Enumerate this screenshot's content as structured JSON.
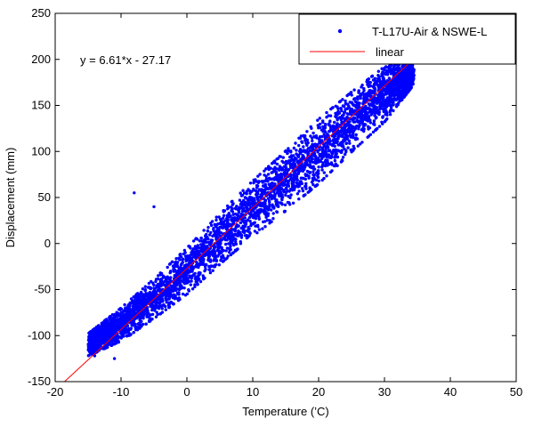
{
  "chart_data": {
    "type": "scatter",
    "title": "",
    "xlabel": "Temperature (’C)",
    "ylabel": "Displacement (mm)",
    "xlim": [
      -20,
      50
    ],
    "ylim": [
      -150,
      250
    ],
    "xticks": [
      -20,
      -10,
      0,
      10,
      20,
      30,
      40,
      50
    ],
    "yticks": [
      -150,
      -100,
      -50,
      0,
      50,
      100,
      150,
      200,
      250
    ],
    "grid": false,
    "legend_position": "top-right",
    "annotation": "y = 6.61*x - 27.17",
    "colors": {
      "scatter": "#0000ff",
      "fit": "#ff0000"
    },
    "series": [
      {
        "name": "T-L17U-Air & NSWE-L",
        "kind": "scatter",
        "band": {
          "x_start": -15,
          "x_end": 34.5,
          "center_line": [
            [
              -15,
              -110
            ],
            [
              -10,
              -88
            ],
            [
              -5,
              -60
            ],
            [
              0,
              -30
            ],
            [
              5,
              5
            ],
            [
              10,
              38
            ],
            [
              15,
              68
            ],
            [
              20,
              100
            ],
            [
              25,
              132
            ],
            [
              30,
              162
            ],
            [
              34.5,
              185
            ]
          ],
          "half_width": [
            [
              -15,
              12
            ],
            [
              -10,
              18
            ],
            [
              0,
              25
            ],
            [
              10,
              30
            ],
            [
              20,
              35
            ],
            [
              30,
              30
            ],
            [
              34.5,
              12
            ]
          ]
        },
        "outliers": [
          [
            -8,
            55
          ],
          [
            -5,
            40
          ],
          [
            -14,
            -122
          ],
          [
            -11,
            -125
          ]
        ]
      },
      {
        "name": "linear",
        "kind": "line",
        "slope": 6.61,
        "intercept": -27.17,
        "x_range": [
          -20,
          40
        ]
      }
    ]
  }
}
